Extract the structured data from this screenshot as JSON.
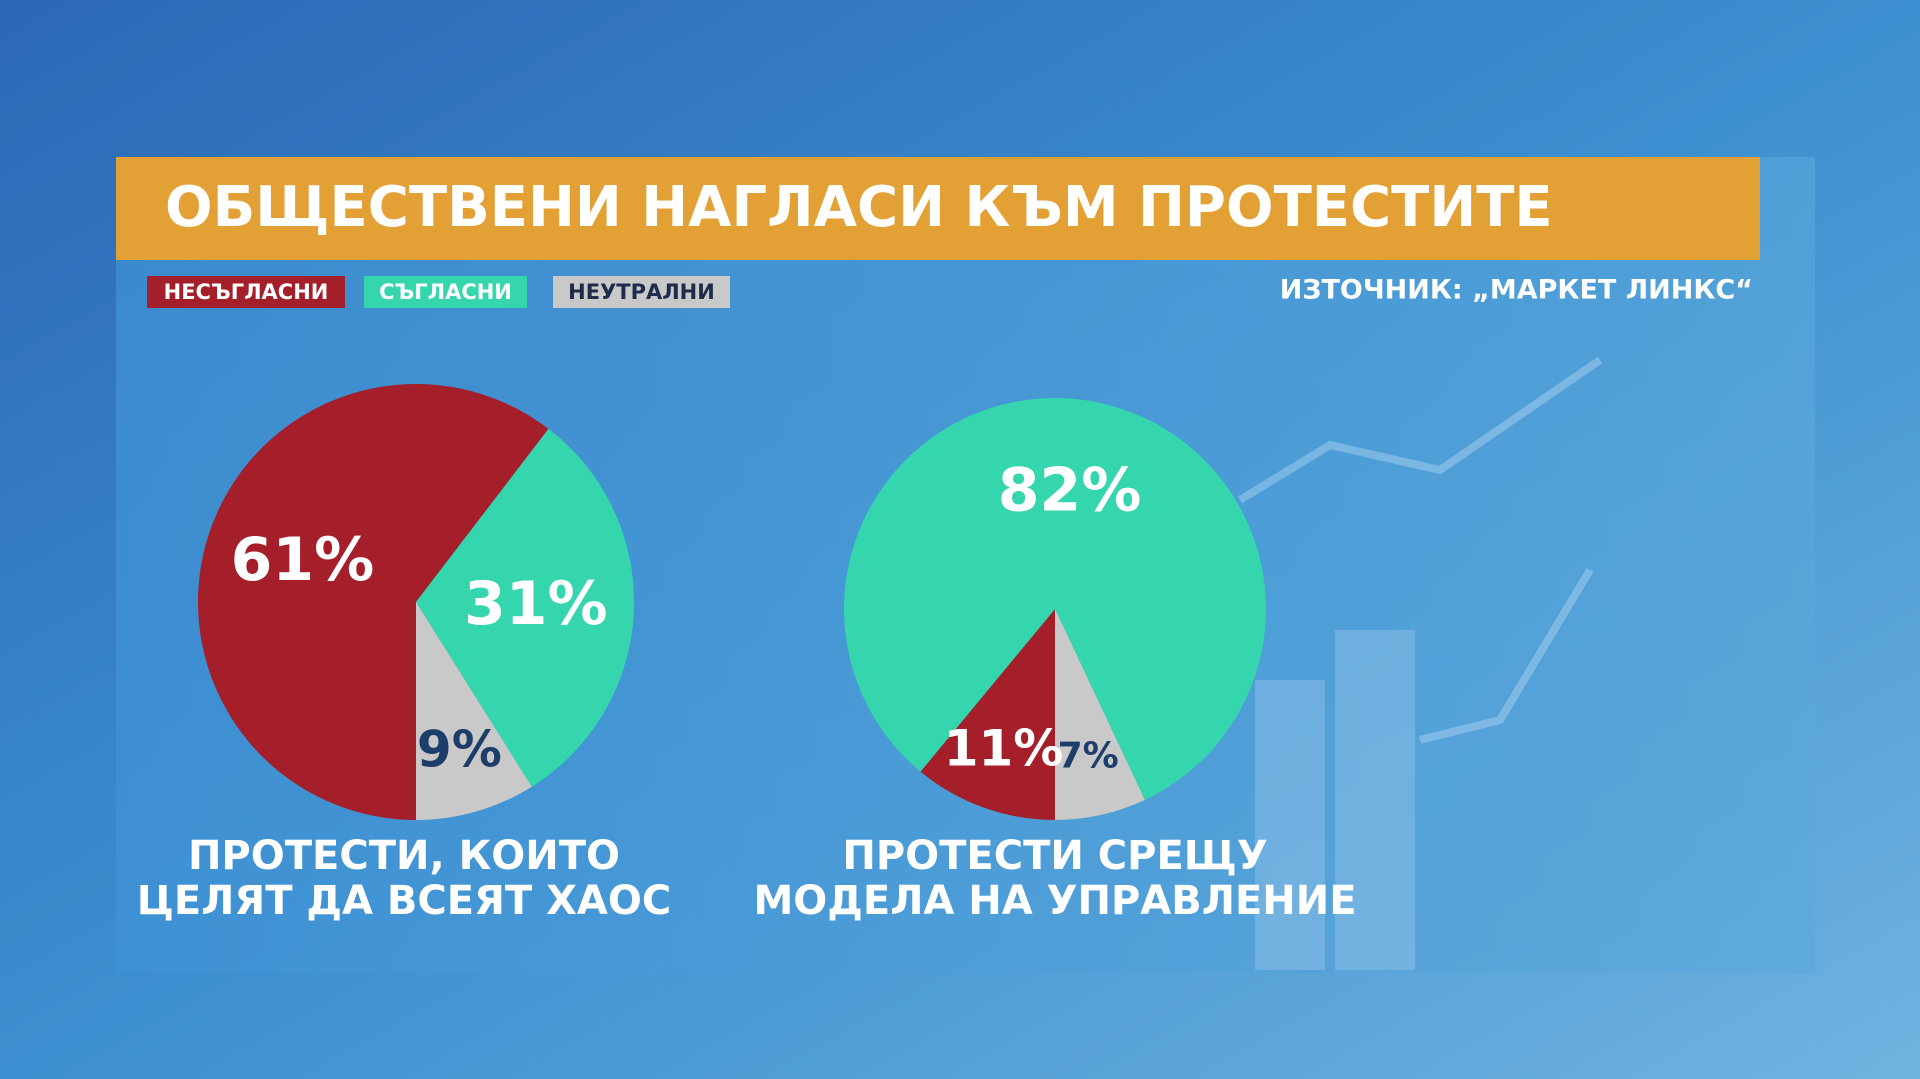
{
  "header": {
    "title": "ОБЩЕСТВЕНИ НАГЛАСИ КЪМ ПРОТЕСТИТЕ",
    "source": "ИЗТОЧНИК: „МАРКЕТ ЛИНКС“"
  },
  "chart_data": [
    {
      "type": "pie",
      "title": [
        "ПРОТЕСТИ, КОИТО",
        "ЦЕЛЯТ ДА ВСЕЯТ ХАОС"
      ],
      "categories": [
        "НЕСЪГЛАСНИ",
        "СЪГЛАСНИ",
        "НЕУТРАЛНИ"
      ],
      "values": [
        61,
        31,
        9
      ],
      "value_labels": [
        "61%",
        "31%",
        "9%"
      ],
      "colors": [
        "#a51f2a",
        "#35d6ad",
        "#c9c9c9"
      ],
      "label_colors": [
        "#ffffff",
        "#ffffff",
        "#1d3d6b"
      ]
    },
    {
      "type": "pie",
      "title": [
        "ПРОТЕСТИ СРЕЩУ",
        "МОДЕЛА НА УПРАВЛЕНИЕ"
      ],
      "categories": [
        "НЕСЪГЛАСНИ",
        "СЪГЛАСНИ",
        "НЕУТРАЛНИ"
      ],
      "values": [
        11,
        82,
        7
      ],
      "value_labels": [
        "11%",
        "82%",
        "7%"
      ],
      "colors": [
        "#a51f2a",
        "#35d6ad",
        "#c9c9c9"
      ],
      "label_colors": [
        "#ffffff",
        "#ffffff",
        "#1d3d6b"
      ]
    }
  ]
}
